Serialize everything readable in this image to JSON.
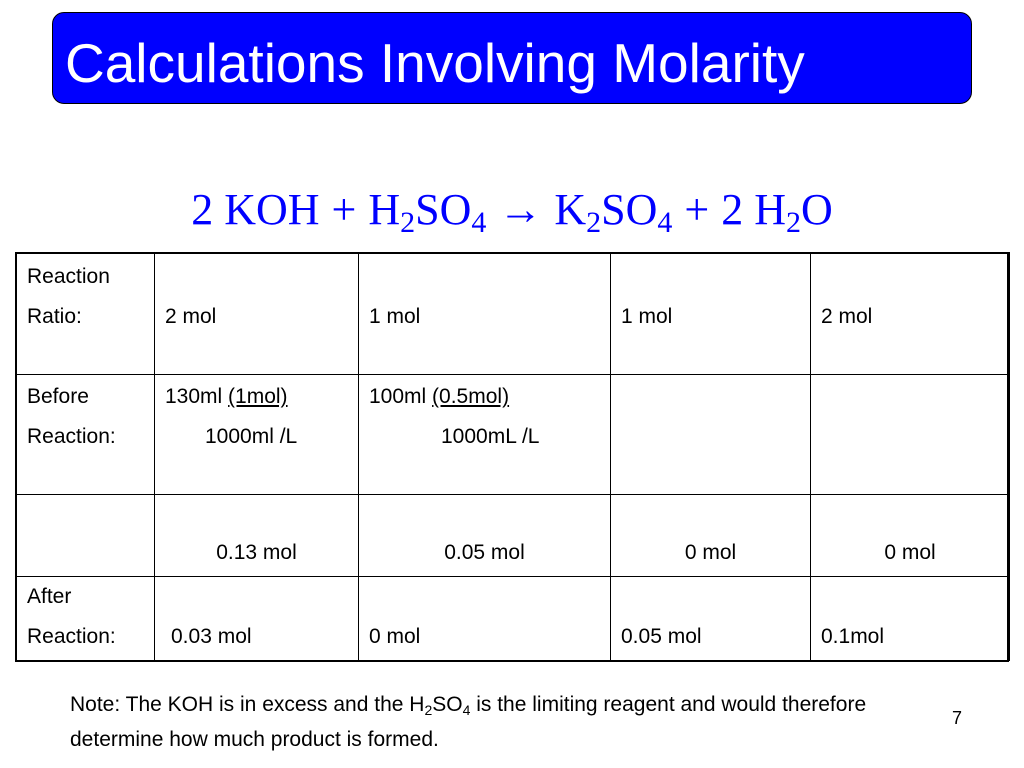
{
  "slide": {
    "title": "Calculations Involving Molarity",
    "page_number": "7"
  },
  "equation": {
    "coef1": "2",
    "r1": "KOH",
    "plus1": "+",
    "r2_a": "H",
    "r2_sub1": "2",
    "r2_b": "SO",
    "r2_sub2": "4",
    "arrow": "→",
    "p1_a": "K",
    "p1_sub1": "2",
    "p1_b": "SO",
    "p1_sub2": "4",
    "plus2": "+",
    "coef2": "2",
    "p2_a": "H",
    "p2_sub": "2",
    "p2_b": "O"
  },
  "table": {
    "row1": {
      "label_line1": "Reaction",
      "label_line2": "Ratio:",
      "c1": "2 mol",
      "c2": "1 mol",
      "c3": "1 mol",
      "c4": "2 mol"
    },
    "row2": {
      "label_line1": "Before",
      "label_line2": "Reaction:",
      "c1_vol": "130ml",
      "c1_mol": "(1mol)",
      "c1_line2": "1000ml /L",
      "c2_vol": "100ml",
      "c2_mol": "(0.5mol)",
      "c2_line2": "1000mL /L",
      "c3": "",
      "c4": ""
    },
    "row3": {
      "label": "",
      "c1": "0.13 mol",
      "c2": "0.05 mol",
      "c3": "0 mol",
      "c4": "0 mol"
    },
    "row4": {
      "label_line1": "After",
      "label_line2": "Reaction:",
      "c1": "0.03 mol",
      "c2": "0 mol",
      "c3": "0.05 mol",
      "c4": "0.1mol"
    }
  },
  "note": {
    "part1": "Note: The KOH is in excess and  the H",
    "sub1": "2",
    "part2": "SO",
    "sub2": "4",
    "part3": " is the limiting reagent and would therefore determine how much product is formed."
  },
  "colors": {
    "title_background": "#0000ff",
    "title_text": "#ffffff",
    "equation_text": "#0000ff"
  }
}
